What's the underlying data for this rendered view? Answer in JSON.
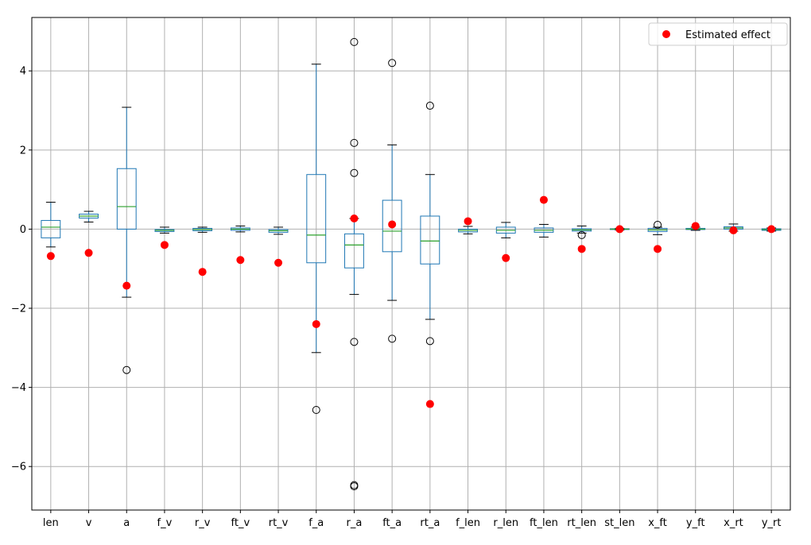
{
  "chart_data": {
    "type": "box",
    "title": "",
    "xlabel": "",
    "ylabel": "",
    "ylim": [
      -7.1,
      5.35
    ],
    "yticks": [
      -6,
      -4,
      -2,
      0,
      2,
      4
    ],
    "grid": true,
    "legend": {
      "placement": "top-right",
      "label": "Estimated effect"
    },
    "colors": {
      "box": "#1f77b4",
      "median": "#2ca02c",
      "whisker": "#000000",
      "outlier": "#000000",
      "point": "#ff0000",
      "grid": "#b0b0b0"
    },
    "categories": [
      "len",
      "v",
      "a",
      "f_v",
      "r_v",
      "ft_v",
      "rt_v",
      "f_a",
      "r_a",
      "ft_a",
      "rt_a",
      "f_len",
      "r_len",
      "ft_len",
      "rt_len",
      "st_len",
      "x_ft",
      "y_ft",
      "x_rt",
      "y_rt"
    ],
    "boxes": [
      {
        "whislo": -0.45,
        "q1": -0.22,
        "med": 0.05,
        "q3": 0.22,
        "whishi": 0.68,
        "fliers": []
      },
      {
        "whislo": 0.18,
        "q1": 0.28,
        "med": 0.33,
        "q3": 0.38,
        "whishi": 0.45,
        "fliers": []
      },
      {
        "whislo": -1.72,
        "q1": 0.0,
        "med": 0.57,
        "q3": 1.53,
        "whishi": 3.08,
        "fliers": [
          -3.56
        ]
      },
      {
        "whislo": -0.1,
        "q1": -0.06,
        "med": -0.03,
        "q3": -0.01,
        "whishi": 0.05,
        "fliers": []
      },
      {
        "whislo": -0.08,
        "q1": -0.04,
        "med": -0.01,
        "q3": 0.02,
        "whishi": 0.05,
        "fliers": []
      },
      {
        "whislo": -0.07,
        "q1": -0.03,
        "med": 0.0,
        "q3": 0.03,
        "whishi": 0.08,
        "fliers": []
      },
      {
        "whislo": -0.13,
        "q1": -0.08,
        "med": -0.04,
        "q3": -0.01,
        "whishi": 0.05,
        "fliers": []
      },
      {
        "whislo": -3.12,
        "q1": -0.85,
        "med": -0.15,
        "q3": 1.38,
        "whishi": 4.17,
        "fliers": [
          -4.57
        ]
      },
      {
        "whislo": -1.65,
        "q1": -0.98,
        "med": -0.4,
        "q3": -0.12,
        "whishi": 0.27,
        "fliers": [
          4.73,
          2.18,
          1.42,
          -2.85,
          -6.47,
          -6.5
        ]
      },
      {
        "whislo": -1.8,
        "q1": -0.57,
        "med": -0.05,
        "q3": 0.73,
        "whishi": 2.13,
        "fliers": [
          4.2,
          -2.77
        ]
      },
      {
        "whislo": -2.28,
        "q1": -0.88,
        "med": -0.3,
        "q3": 0.33,
        "whishi": 1.38,
        "fliers": [
          3.12,
          -2.83
        ]
      },
      {
        "whislo": -0.12,
        "q1": -0.07,
        "med": -0.03,
        "q3": 0.0,
        "whishi": 0.07,
        "fliers": []
      },
      {
        "whislo": -0.22,
        "q1": -0.1,
        "med": -0.03,
        "q3": 0.05,
        "whishi": 0.17,
        "fliers": []
      },
      {
        "whislo": -0.2,
        "q1": -0.08,
        "med": -0.03,
        "q3": 0.03,
        "whishi": 0.12,
        "fliers": []
      },
      {
        "whislo": -0.1,
        "q1": -0.05,
        "med": -0.02,
        "q3": 0.01,
        "whishi": 0.08,
        "fliers": [
          -0.15
        ]
      },
      {
        "whislo": -0.02,
        "q1": -0.01,
        "med": 0.0,
        "q3": 0.01,
        "whishi": 0.02,
        "fliers": []
      },
      {
        "whislo": -0.14,
        "q1": -0.06,
        "med": -0.02,
        "q3": 0.02,
        "whishi": 0.05,
        "fliers": [
          0.11
        ]
      },
      {
        "whislo": -0.03,
        "q1": -0.01,
        "med": 0.0,
        "q3": 0.02,
        "whishi": 0.05,
        "fliers": []
      },
      {
        "whislo": -0.05,
        "q1": 0.0,
        "med": 0.03,
        "q3": 0.06,
        "whishi": 0.13,
        "fliers": []
      },
      {
        "whislo": -0.05,
        "q1": -0.03,
        "med": -0.01,
        "q3": 0.01,
        "whishi": 0.03,
        "fliers": []
      }
    ],
    "estimated_effect": [
      -0.68,
      -0.6,
      -1.43,
      -0.4,
      -1.08,
      -0.78,
      -0.85,
      -2.4,
      0.27,
      0.12,
      -4.42,
      0.2,
      -0.73,
      0.74,
      -0.5,
      0.0,
      -0.5,
      0.08,
      -0.03,
      0.0
    ]
  }
}
